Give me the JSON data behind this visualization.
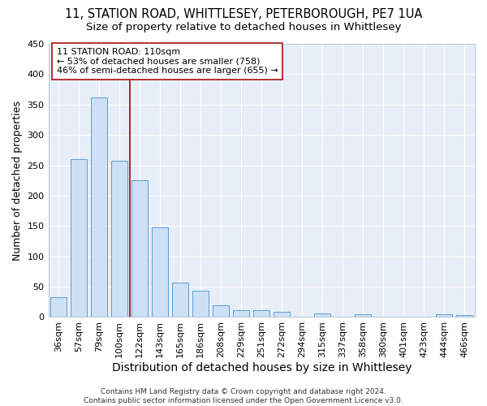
{
  "title_line1": "11, STATION ROAD, WHITTLESEY, PETERBOROUGH, PE7 1UA",
  "title_line2": "Size of property relative to detached houses in Whittlesey",
  "xlabel": "Distribution of detached houses by size in Whittlesey",
  "ylabel": "Number of detached properties",
  "categories": [
    "36sqm",
    "57sqm",
    "79sqm",
    "100sqm",
    "122sqm",
    "143sqm",
    "165sqm",
    "186sqm",
    "208sqm",
    "229sqm",
    "251sqm",
    "272sqm",
    "294sqm",
    "315sqm",
    "337sqm",
    "358sqm",
    "380sqm",
    "401sqm",
    "423sqm",
    "444sqm",
    "466sqm"
  ],
  "values": [
    33,
    260,
    362,
    257,
    225,
    148,
    57,
    44,
    20,
    11,
    11,
    8,
    0,
    6,
    0,
    4,
    0,
    0,
    0,
    4,
    3
  ],
  "bar_color": "#cde0f5",
  "bar_edge_color": "#5a9fd4",
  "vline_x_index": 3,
  "vline_color": "#aa1111",
  "annotation_text": "11 STATION ROAD: 110sqm\n← 53% of detached houses are smaller (758)\n46% of semi-detached houses are larger (655) →",
  "annotation_box_color": "#ffffff",
  "annotation_box_edge": "#aa1111",
  "ylim": [
    0,
    450
  ],
  "yticks": [
    0,
    50,
    100,
    150,
    200,
    250,
    300,
    350,
    400,
    450
  ],
  "fig_bg_color": "#ffffff",
  "plot_bg_color": "#e8eef8",
  "grid_color": "#ffffff",
  "footnote": "Contains HM Land Registry data © Crown copyright and database right 2024.\nContains public sector information licensed under the Open Government Licence v3.0.",
  "title_fontsize": 10.5,
  "subtitle_fontsize": 9.5,
  "xlabel_fontsize": 10,
  "ylabel_fontsize": 9,
  "tick_fontsize": 8,
  "annotation_fontsize": 8,
  "footnote_fontsize": 6.5
}
